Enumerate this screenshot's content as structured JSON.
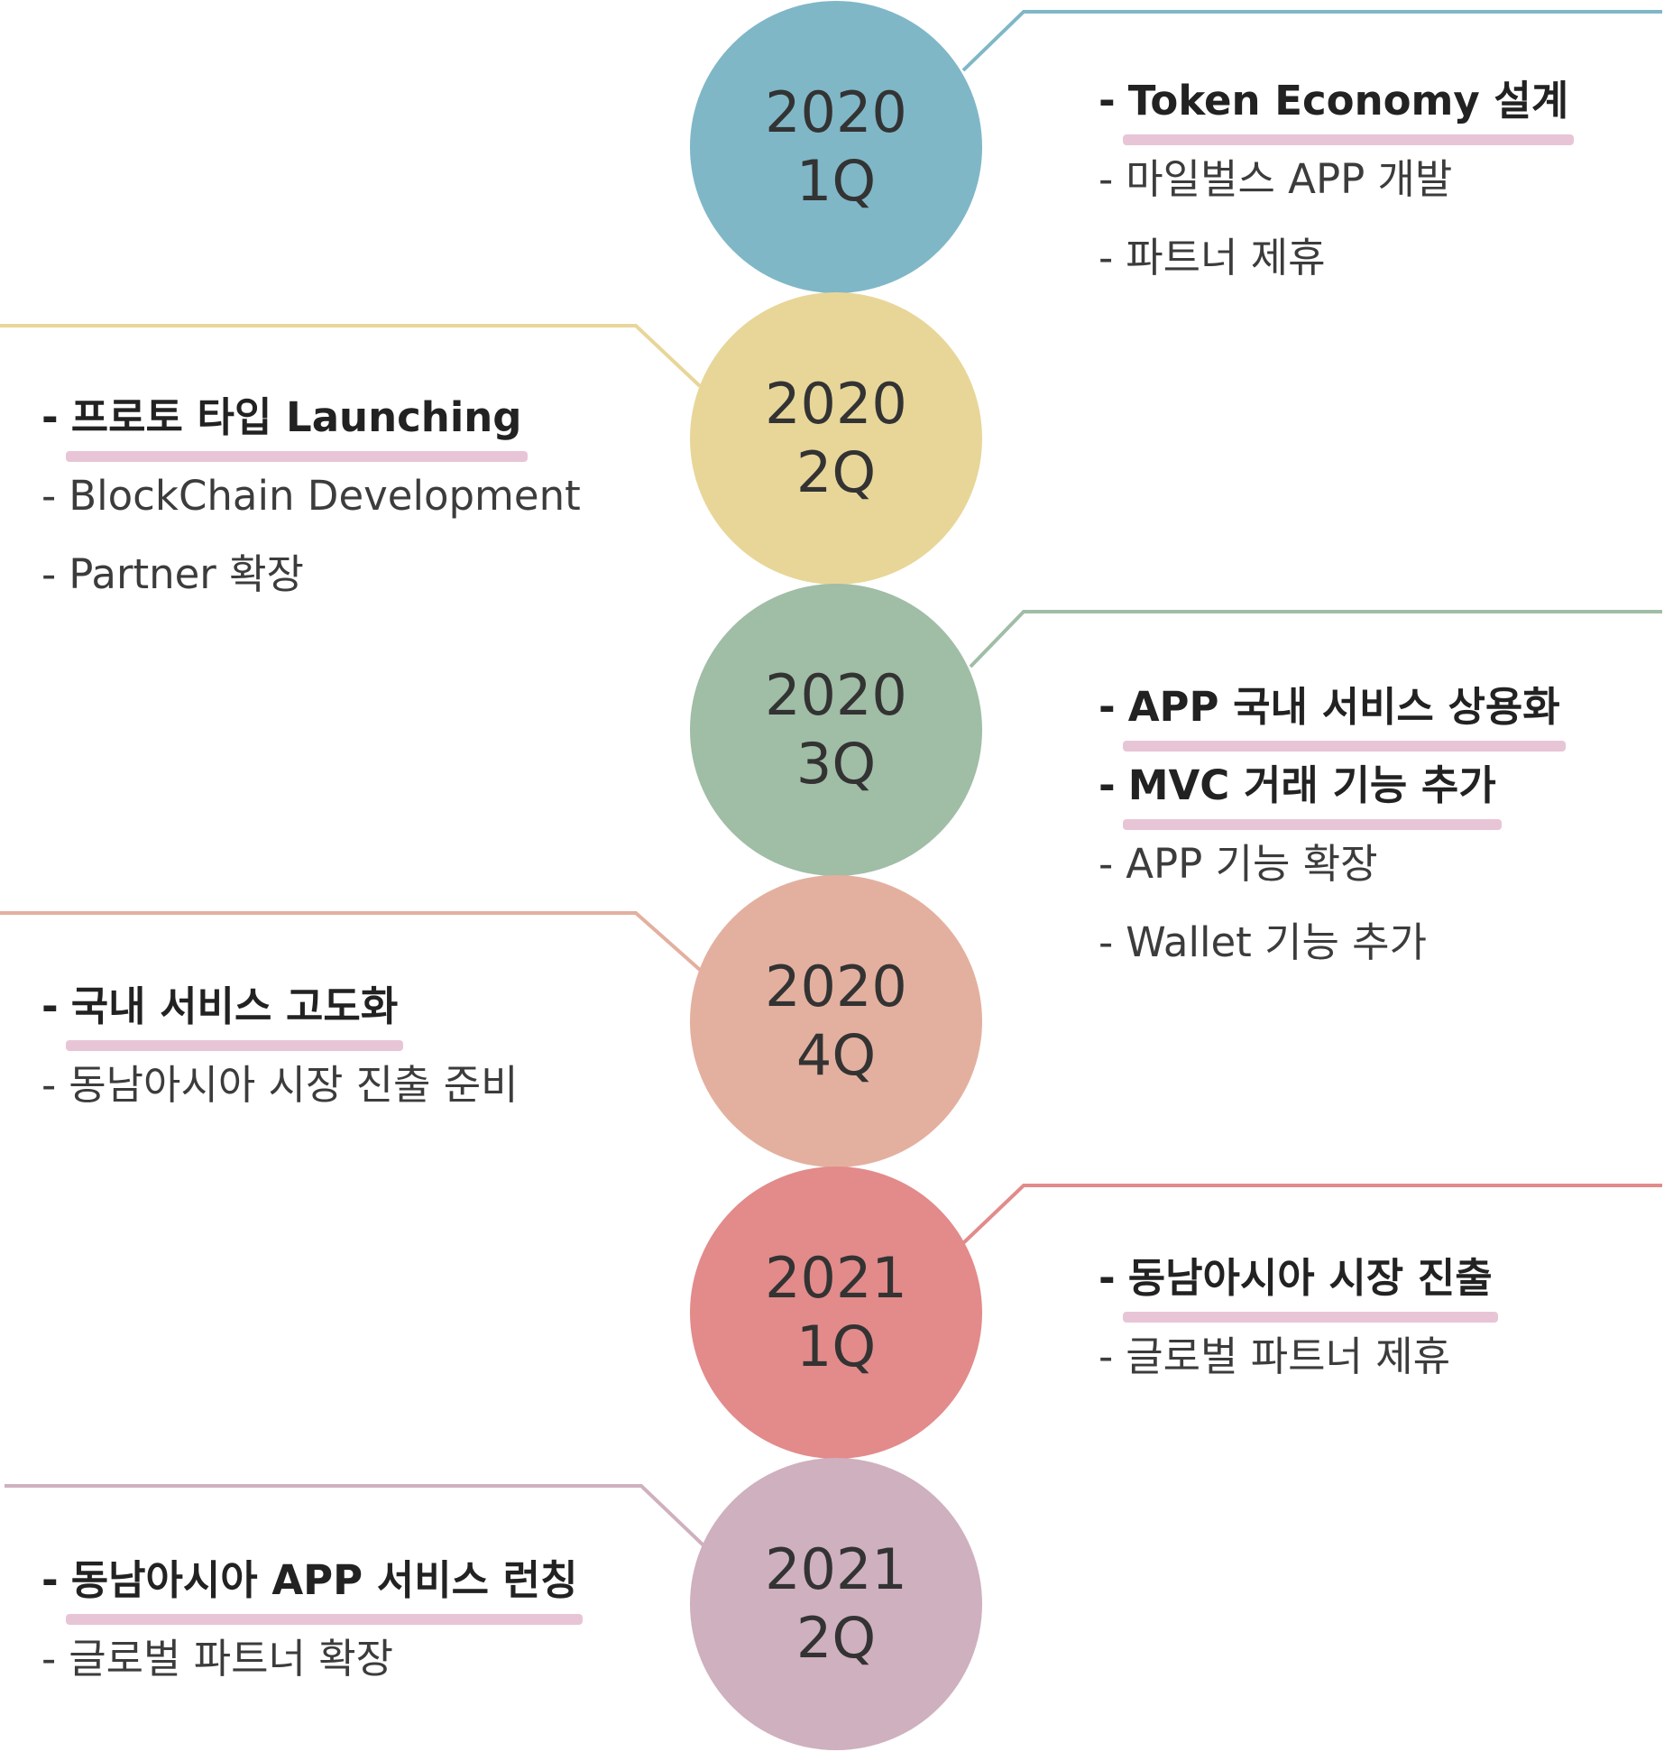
{
  "milestones": [
    {
      "year": "2020",
      "quarter": "1Q",
      "color": "#7fb7c7",
      "side": "right",
      "items": [
        {
          "text": "Token Economy 설계",
          "highlight": true
        },
        {
          "text": "마일벌스 APP 개발",
          "highlight": false
        },
        {
          "text": "파트너 제휴",
          "highlight": false
        }
      ]
    },
    {
      "year": "2020",
      "quarter": "2Q",
      "color": "#e8d699",
      "side": "left",
      "items": [
        {
          "text": "프로토 타입 Launching",
          "highlight": true
        },
        {
          "text": "BlockChain Development",
          "highlight": false
        },
        {
          "text": "Partner 확장",
          "highlight": false
        }
      ]
    },
    {
      "year": "2020",
      "quarter": "3Q",
      "color": "#a0bda6",
      "side": "right",
      "items": [
        {
          "text": "APP 국내 서비스 상용화",
          "highlight": true
        },
        {
          "text": "MVC 거래 기능 추가",
          "highlight": true
        },
        {
          "text": "APP 기능 확장",
          "highlight": false
        },
        {
          "text": "Wallet 기능 추가",
          "highlight": false
        }
      ]
    },
    {
      "year": "2020",
      "quarter": "4Q",
      "color": "#e3b09f",
      "side": "left",
      "items": [
        {
          "text": "국내 서비스 고도화",
          "highlight": true
        },
        {
          "text": "동남아시아 시장 진출 준비",
          "highlight": false
        }
      ]
    },
    {
      "year": "2021",
      "quarter": "1Q",
      "color": "#e28b8a",
      "side": "right",
      "items": [
        {
          "text": "동남아시아 시장 진출",
          "highlight": true
        },
        {
          "text": "글로벌 파트너 제휴",
          "highlight": false
        }
      ]
    },
    {
      "year": "2021",
      "quarter": "2Q",
      "color": "#cfb0bf",
      "side": "left",
      "items": [
        {
          "text": "동남아시아 APP 서비스 런칭",
          "highlight": true
        },
        {
          "text": "글로벌 파트너 확장",
          "highlight": false
        }
      ]
    }
  ],
  "bullet": "-"
}
